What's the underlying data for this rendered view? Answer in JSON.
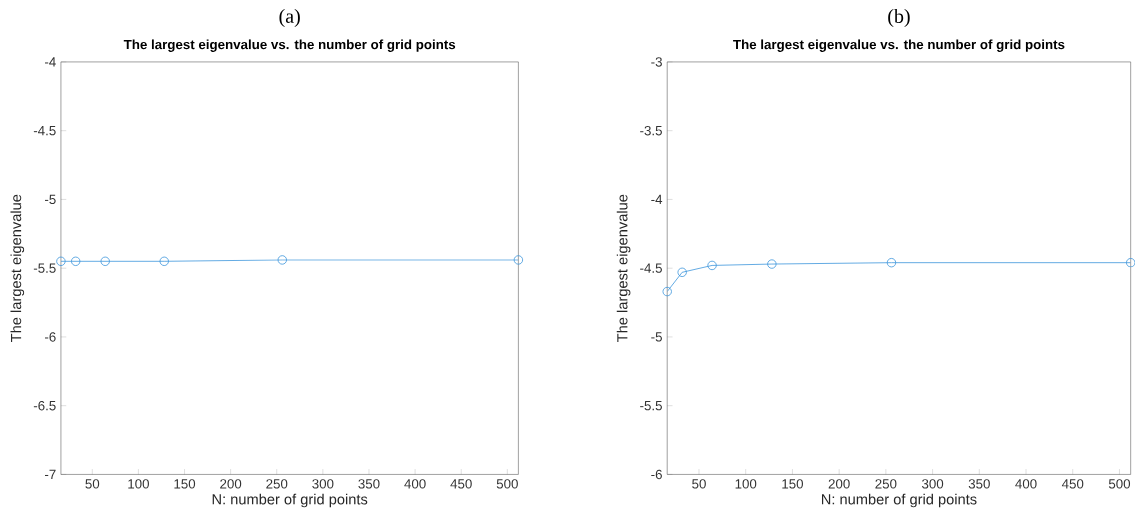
{
  "chart_data": [
    {
      "type": "line",
      "title": "The largest eigenvalue vs. the number of grid points",
      "xlabel": "N: number of grid points",
      "ylabel": "The largest eigenvalue",
      "annotations": [
        "(a)"
      ],
      "x": [
        16,
        32,
        64,
        128,
        256,
        512
      ],
      "series": [
        {
          "color": "#3c96dc",
          "values": [
            -5.45,
            -5.45,
            -5.45,
            -5.45,
            -5.44,
            -5.44
          ]
        }
      ],
      "xlim": [
        16,
        512
      ],
      "ylim": [
        -7,
        -4
      ],
      "xticks": [
        50,
        100,
        150,
        200,
        250,
        300,
        350,
        400,
        450,
        500
      ],
      "yticks": [
        -7,
        -6.5,
        -6,
        -5.5,
        -5,
        -4.5,
        -4
      ],
      "marker": "circle",
      "line_style": "solid",
      "grid": false
    },
    {
      "type": "line",
      "title": "The largest eigenvalue vs. the number of grid points",
      "xlabel": "N: number of grid points",
      "ylabel": "The largest eigenvalue",
      "annotations": [
        "(b)"
      ],
      "x": [
        16,
        32,
        64,
        128,
        256,
        512
      ],
      "series": [
        {
          "color": "#3c96dc",
          "values": [
            -4.67,
            -4.53,
            -4.48,
            -4.47,
            -4.46,
            -4.46
          ]
        }
      ],
      "xlim": [
        16,
        512
      ],
      "ylim": [
        -6,
        -3
      ],
      "xticks": [
        50,
        100,
        150,
        200,
        250,
        300,
        350,
        400,
        450,
        500
      ],
      "yticks": [
        -6,
        -5.5,
        -5,
        -4.5,
        -4,
        -3.5,
        -3
      ],
      "marker": "circle",
      "line_style": "solid",
      "grid": false
    }
  ]
}
